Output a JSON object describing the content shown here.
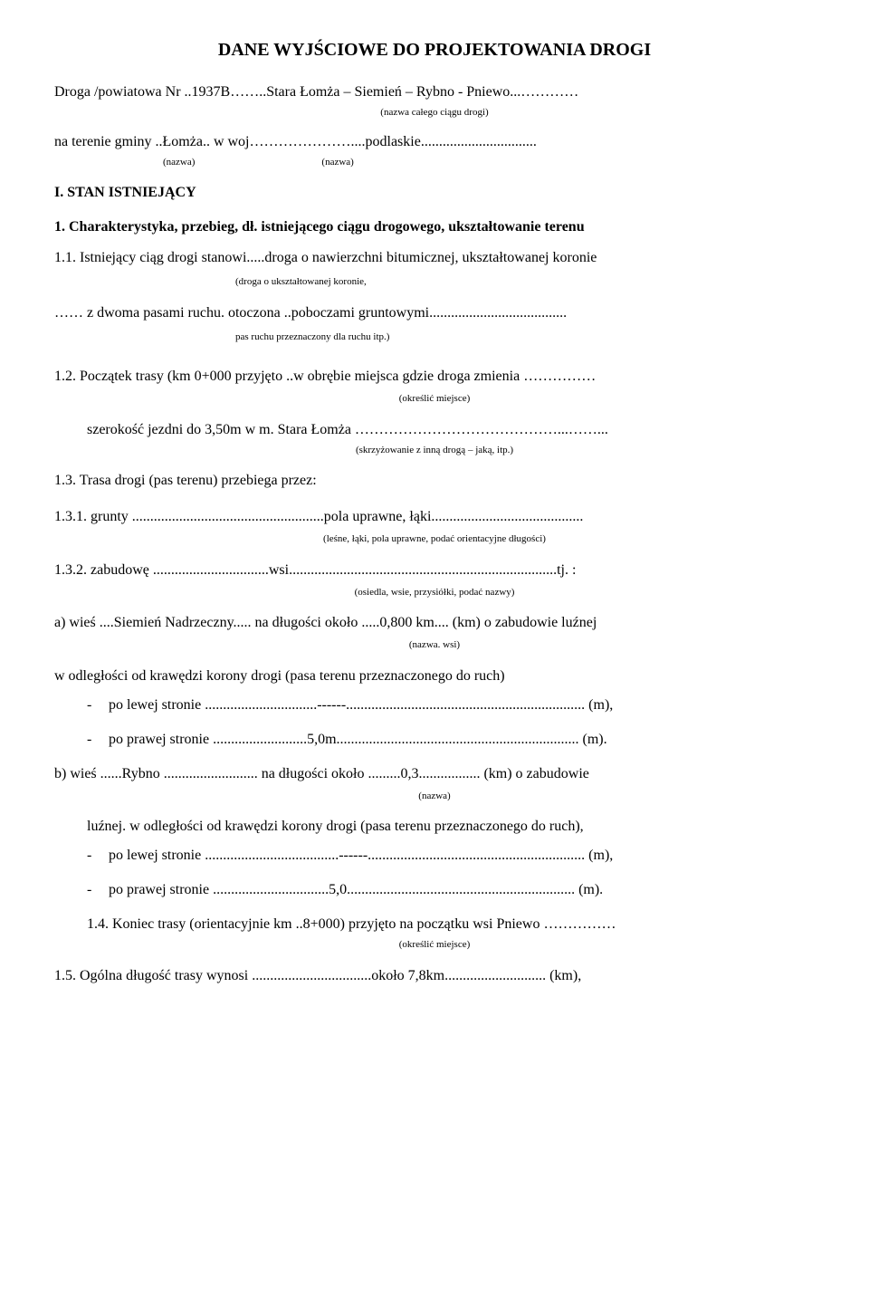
{
  "title": "DANE WYJŚCIOWE DO PROJEKTOWANIA DROGI",
  "line1": "Droga /powiatowa Nr ..1937B……..Stara Łomża – Siemień – Rybno - Pniewo...…………",
  "note1": "(nazwa całego ciągu drogi)",
  "line2": "na terenie gminy ..Łomża.. w woj…………………....podlaskie................................",
  "labelA": "(nazwa)",
  "labelB": "(nazwa)",
  "sec1": "I. STAN ISTNIEJĄCY",
  "sec1_1": "1. Charakterystyka, przebieg, dł. istniejącego ciągu drogowego, ukształtowanie terenu",
  "p11": "1.1. Istniejący ciąg drogi stanowi.....droga o nawierzchni bitumicznej, ukształtowanej koronie",
  "p11_note": "(droga o ukształtowanej koronie,",
  "p11b": "……     z dwoma pasami ruchu. otoczona ..poboczami gruntowymi......................................",
  "p11b_note": "pas ruchu przeznaczony dla ruchu itp.)",
  "p12": "1.2. Początek trasy (km 0+000 przyjęto ..w obrębie miejsca gdzie droga zmienia ……………",
  "p12_note": "(określić miejsce)",
  "p12b": "szerokość jezdni do 3,50m w m. Stara Łomża ……………………………………...……...",
  "p12b_note": "(skrzyżowanie z inną drogą – jaką, itp.)",
  "p13": "1.3. Trasa drogi (pas terenu) przebiega przez:",
  "p131": "1.3.1.    grunty .....................................................pola uprawne, łąki..........................................",
  "p131_note": "(leśne, łąki, pola uprawne, podać orientacyjne długości)",
  "p132": "1.3.2.    zabudowę ................................wsi..........................................................................tj. :",
  "p132_note": "(osiedla, wsie, przysiółki, podać nazwy)",
  "pA": "a) wieś ....Siemień Nadrzeczny..... na długości około .....0,800 km.... (km) o zabudowie  luźnej",
  "pA_note": "(nazwa. wsi)",
  "pA2": "w odległości od krawędzi korony drogi (pasa terenu przeznaczonego do ruch)",
  "dashA1": "po lewej stronie ...............................------.................................................................. (m),",
  "dashA2": "po prawej stronie ..........................5,0m................................................................... (m).",
  "pB": "b) wieś ......Rybno .......................... na długości około .........0,3................. (km) o zabudowie",
  "pB_note": "(nazwa)",
  "pB2": "luźnej. w odległości od krawędzi korony drogi (pasa terenu przeznaczonego do ruch),",
  "dashB1": "po lewej stronie .....................................------............................................................ (m),",
  "dashB2": "po prawej stronie ................................5,0............................................................... (m).",
  "p14": "1.4. Koniec trasy (orientacyjnie km ..8+000) przyjęto na początku wsi Pniewo ……………",
  "p14_note": "(określić miejsce)",
  "p15": "1.5. Ogólna długość trasy wynosi .................................około 7,8km............................ (km),"
}
